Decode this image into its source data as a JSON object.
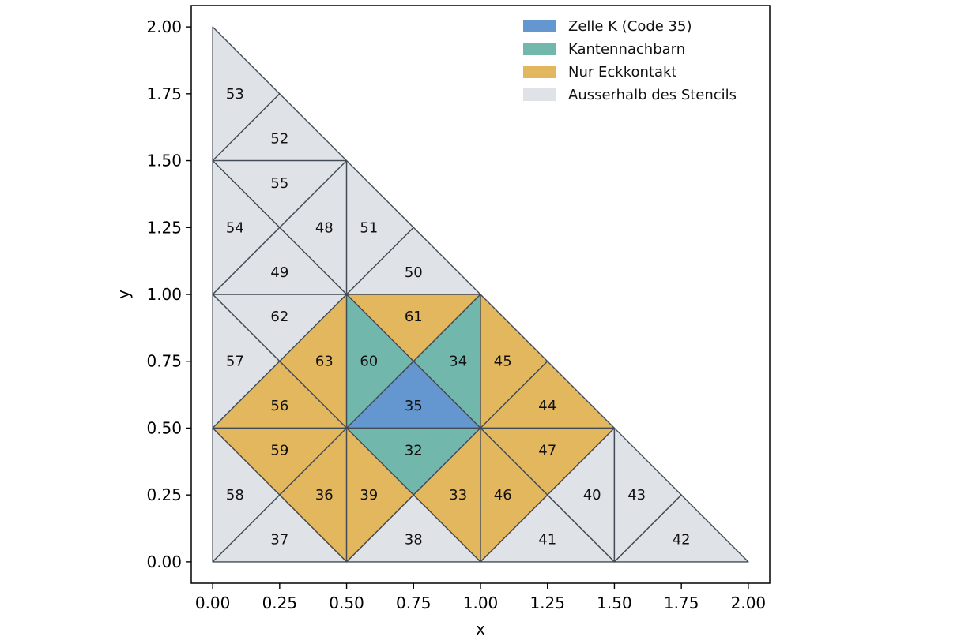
{
  "chart_data": {
    "type": "mesh",
    "xlabel": "x",
    "ylabel": "y",
    "xlim": [
      -0.08,
      2.08
    ],
    "ylim": [
      -0.08,
      2.08
    ],
    "xticks": [
      "0.00",
      "0.25",
      "0.50",
      "0.75",
      "1.00",
      "1.25",
      "1.50",
      "1.75",
      "2.00"
    ],
    "yticks": [
      "0.00",
      "0.25",
      "0.50",
      "0.75",
      "1.00",
      "1.25",
      "1.50",
      "1.75",
      "2.00"
    ],
    "tick_values": [
      0,
      0.25,
      0.5,
      0.75,
      1.0,
      1.25,
      1.5,
      1.75,
      2.0
    ],
    "legend_position": "top-right",
    "categories": {
      "cell": {
        "label": "Zelle K (Code 35)",
        "color": "#6497d0"
      },
      "edge": {
        "label": "Kantennachbarn",
        "color": "#72b7ab"
      },
      "corner": {
        "label": "Nur Eckkontakt",
        "color": "#e3b75d"
      },
      "outside": {
        "label": "Ausserhalb des Stencils",
        "color": "#dfe3e7"
      }
    },
    "legend_order": [
      "cell",
      "edge",
      "corner",
      "outside"
    ],
    "edge_color": "#434b56",
    "triangles": [
      {
        "code": "53",
        "cat": "outside",
        "v": [
          [
            0,
            1.5
          ],
          [
            0.25,
            1.75
          ],
          [
            0,
            2.0
          ]
        ]
      },
      {
        "code": "52",
        "cat": "outside",
        "v": [
          [
            0,
            1.5
          ],
          [
            0.5,
            1.5
          ],
          [
            0.25,
            1.75
          ]
        ]
      },
      {
        "code": "55",
        "cat": "outside",
        "v": [
          [
            0,
            1.5
          ],
          [
            0.5,
            1.5
          ],
          [
            0.25,
            1.25
          ]
        ]
      },
      {
        "code": "54",
        "cat": "outside",
        "v": [
          [
            0,
            1.5
          ],
          [
            0.25,
            1.25
          ],
          [
            0,
            1.0
          ]
        ]
      },
      {
        "code": "48",
        "cat": "outside",
        "v": [
          [
            0.5,
            1.5
          ],
          [
            0.25,
            1.25
          ],
          [
            0.5,
            1.0
          ]
        ]
      },
      {
        "code": "49",
        "cat": "outside",
        "v": [
          [
            0,
            1.0
          ],
          [
            0.5,
            1.0
          ],
          [
            0.25,
            1.25
          ]
        ]
      },
      {
        "code": "51",
        "cat": "outside",
        "v": [
          [
            0.5,
            1.5
          ],
          [
            0.75,
            1.25
          ],
          [
            0.5,
            1.0
          ]
        ]
      },
      {
        "code": "50",
        "cat": "outside",
        "v": [
          [
            0.5,
            1.0
          ],
          [
            1.0,
            1.0
          ],
          [
            0.75,
            1.25
          ]
        ]
      },
      {
        "code": "62",
        "cat": "outside",
        "v": [
          [
            0,
            1.0
          ],
          [
            0.5,
            1.0
          ],
          [
            0.25,
            0.75
          ]
        ]
      },
      {
        "code": "57",
        "cat": "outside",
        "v": [
          [
            0,
            1.0
          ],
          [
            0.25,
            0.75
          ],
          [
            0,
            0.5
          ]
        ]
      },
      {
        "code": "63",
        "cat": "corner",
        "v": [
          [
            0.5,
            1.0
          ],
          [
            0.25,
            0.75
          ],
          [
            0.5,
            0.5
          ]
        ]
      },
      {
        "code": "56",
        "cat": "corner",
        "v": [
          [
            0,
            0.5
          ],
          [
            0.5,
            0.5
          ],
          [
            0.25,
            0.75
          ]
        ]
      },
      {
        "code": "61",
        "cat": "corner",
        "v": [
          [
            0.5,
            1.0
          ],
          [
            1.0,
            1.0
          ],
          [
            0.75,
            0.75
          ]
        ]
      },
      {
        "code": "60",
        "cat": "edge",
        "v": [
          [
            0.5,
            1.0
          ],
          [
            0.75,
            0.75
          ],
          [
            0.5,
            0.5
          ]
        ]
      },
      {
        "code": "34",
        "cat": "edge",
        "v": [
          [
            1.0,
            1.0
          ],
          [
            0.75,
            0.75
          ],
          [
            1.0,
            0.5
          ]
        ]
      },
      {
        "code": "35",
        "cat": "cell",
        "v": [
          [
            0.5,
            0.5
          ],
          [
            1.0,
            0.5
          ],
          [
            0.75,
            0.75
          ]
        ]
      },
      {
        "code": "45",
        "cat": "corner",
        "v": [
          [
            1.0,
            1.0
          ],
          [
            1.25,
            0.75
          ],
          [
            1.0,
            0.5
          ]
        ]
      },
      {
        "code": "44",
        "cat": "corner",
        "v": [
          [
            1.0,
            0.5
          ],
          [
            1.5,
            0.5
          ],
          [
            1.25,
            0.75
          ]
        ]
      },
      {
        "code": "59",
        "cat": "corner",
        "v": [
          [
            0,
            0.5
          ],
          [
            0.5,
            0.5
          ],
          [
            0.25,
            0.25
          ]
        ]
      },
      {
        "code": "58",
        "cat": "outside",
        "v": [
          [
            0,
            0.5
          ],
          [
            0.25,
            0.25
          ],
          [
            0,
            0
          ]
        ]
      },
      {
        "code": "36",
        "cat": "corner",
        "v": [
          [
            0.5,
            0.5
          ],
          [
            0.25,
            0.25
          ],
          [
            0.5,
            0
          ]
        ]
      },
      {
        "code": "37",
        "cat": "outside",
        "v": [
          [
            0,
            0
          ],
          [
            0.5,
            0
          ],
          [
            0.25,
            0.25
          ]
        ]
      },
      {
        "code": "32",
        "cat": "edge",
        "v": [
          [
            0.5,
            0.5
          ],
          [
            1.0,
            0.5
          ],
          [
            0.75,
            0.25
          ]
        ]
      },
      {
        "code": "39",
        "cat": "corner",
        "v": [
          [
            0.5,
            0.5
          ],
          [
            0.75,
            0.25
          ],
          [
            0.5,
            0
          ]
        ]
      },
      {
        "code": "33",
        "cat": "corner",
        "v": [
          [
            1.0,
            0.5
          ],
          [
            0.75,
            0.25
          ],
          [
            1.0,
            0
          ]
        ]
      },
      {
        "code": "38",
        "cat": "outside",
        "v": [
          [
            0.5,
            0
          ],
          [
            1.0,
            0
          ],
          [
            0.75,
            0.25
          ]
        ]
      },
      {
        "code": "47",
        "cat": "corner",
        "v": [
          [
            1.0,
            0.5
          ],
          [
            1.5,
            0.5
          ],
          [
            1.25,
            0.25
          ]
        ]
      },
      {
        "code": "46",
        "cat": "corner",
        "v": [
          [
            1.0,
            0.5
          ],
          [
            1.25,
            0.25
          ],
          [
            1.0,
            0
          ]
        ]
      },
      {
        "code": "40",
        "cat": "outside",
        "v": [
          [
            1.5,
            0.5
          ],
          [
            1.25,
            0.25
          ],
          [
            1.5,
            0
          ]
        ]
      },
      {
        "code": "41",
        "cat": "outside",
        "v": [
          [
            1.0,
            0
          ],
          [
            1.5,
            0
          ],
          [
            1.25,
            0.25
          ]
        ]
      },
      {
        "code": "43",
        "cat": "outside",
        "v": [
          [
            1.5,
            0.5
          ],
          [
            1.75,
            0.25
          ],
          [
            1.5,
            0
          ]
        ]
      },
      {
        "code": "42",
        "cat": "outside",
        "v": [
          [
            1.5,
            0
          ],
          [
            2.0,
            0
          ],
          [
            1.75,
            0.25
          ]
        ]
      }
    ]
  }
}
